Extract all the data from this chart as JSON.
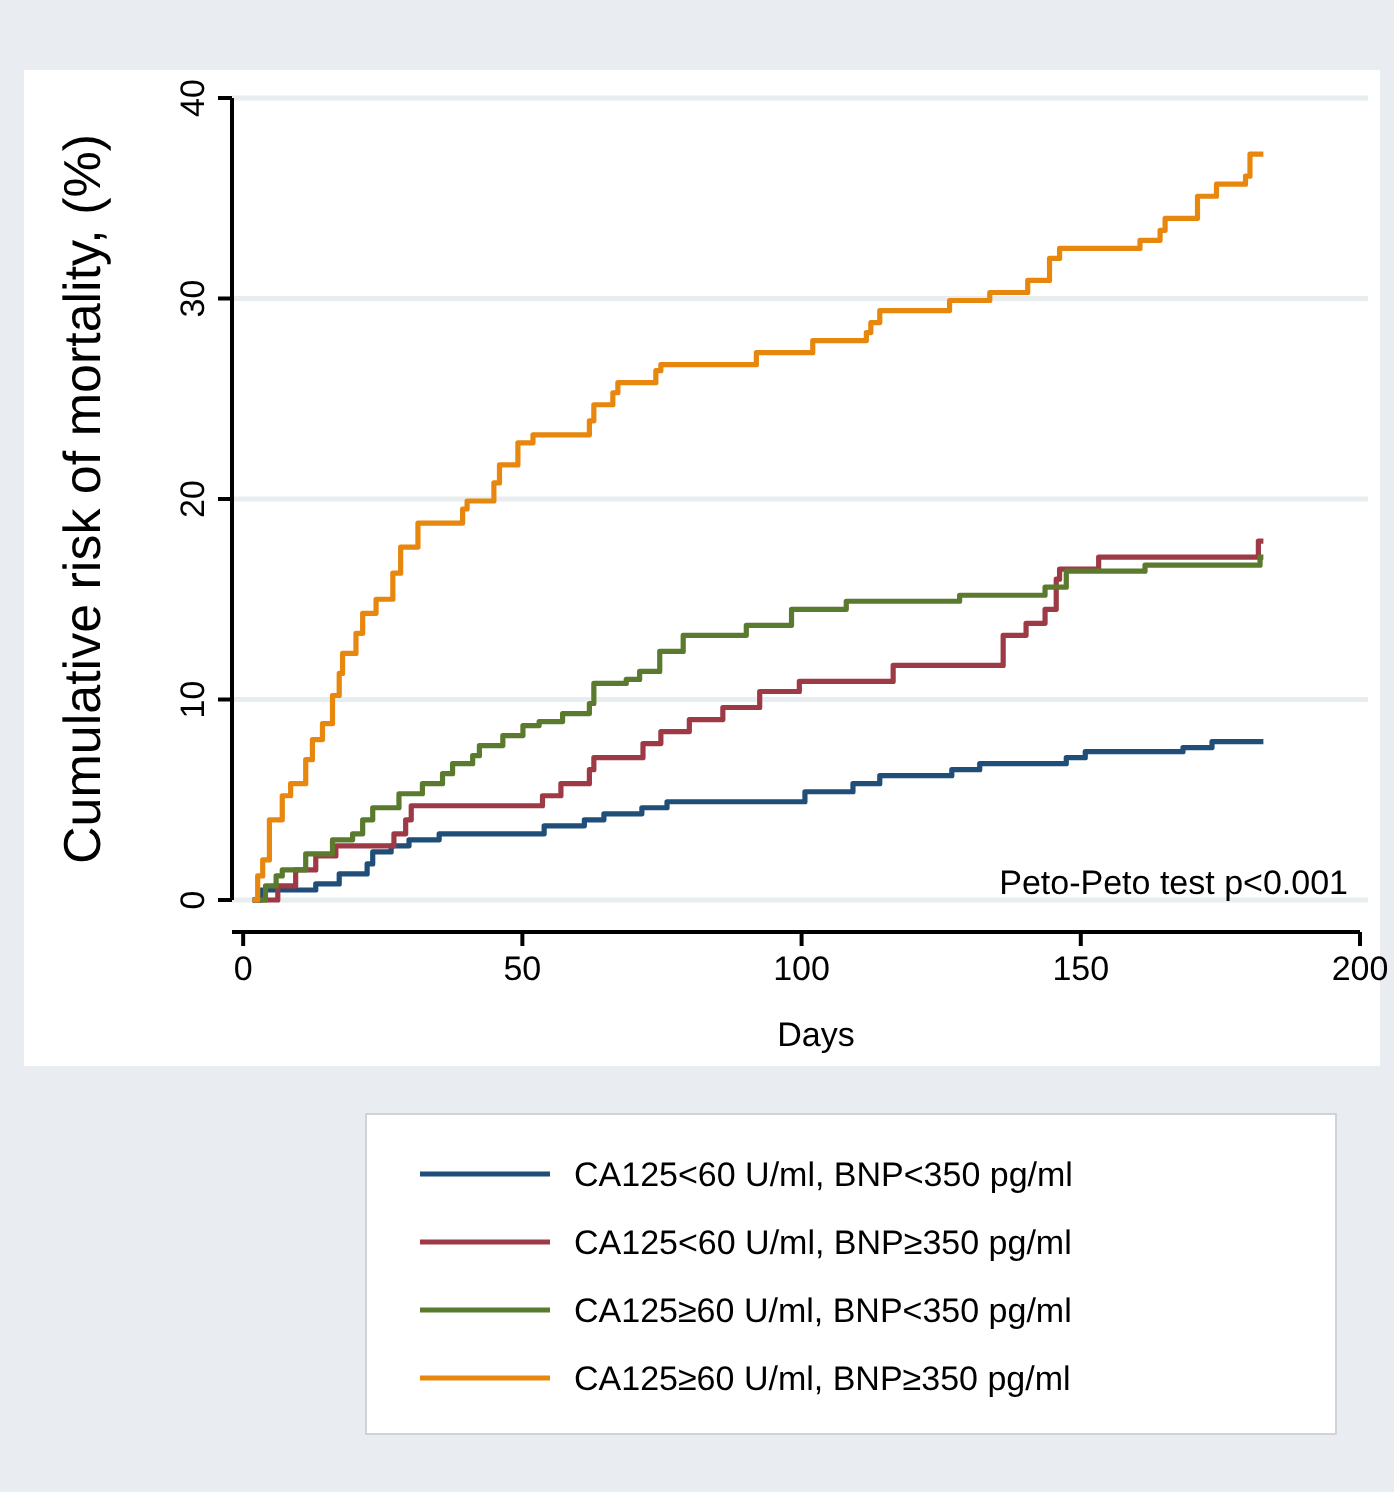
{
  "chart_data": {
    "type": "step",
    "xlabel": "Days",
    "ylabel": "Cumulative risk of  mortality, (%)",
    "xlim": [
      -2,
      200
    ],
    "xticks": [
      0,
      50,
      100,
      150,
      200
    ],
    "ylim": [
      0,
      40
    ],
    "yticks": [
      0,
      10,
      20,
      30,
      40
    ],
    "grid": "y",
    "legend": "bottom",
    "line_style": "solid",
    "marker": "none",
    "annotations": [
      "Peto-Peto test p<0.001"
    ],
    "series": [
      {
        "name": "CA125<60 U/ml, BNP<350 pg/ml",
        "color": "#1f4e79",
        "x": [
          1.7,
          3.1,
          13.0,
          17.2,
          22.2,
          23.2,
          26.5,
          29.7,
          35.1,
          53.9,
          61.1,
          64.6,
          71.4,
          75.9,
          100.6,
          109.2,
          114.0,
          126.9,
          131.9,
          147.4,
          150.8,
          168.3,
          173.5,
          182.7
        ],
        "values": [
          0,
          0.5,
          0.8,
          1.3,
          1.8,
          2.4,
          2.7,
          3.0,
          3.3,
          3.7,
          4.0,
          4.3,
          4.6,
          4.9,
          5.4,
          5.8,
          6.2,
          6.5,
          6.8,
          7.1,
          7.4,
          7.6,
          7.9,
          7.9
        ]
      },
      {
        "name": "CA125<60 U/ml, BNP≥350 pg/ml",
        "color": "#9e3a46",
        "x": [
          1.7,
          6.2,
          9.4,
          13.0,
          16.6,
          27.0,
          29.1,
          30.1,
          53.6,
          56.9,
          62.0,
          62.8,
          71.6,
          74.8,
          79.9,
          85.9,
          92.5,
          99.6,
          116.4,
          136.1,
          140.2,
          143.6,
          145.6,
          146.2,
          153.2,
          181.8,
          182.7
        ],
        "values": [
          0,
          0.7,
          1.5,
          2.2,
          2.7,
          3.3,
          4.0,
          4.7,
          5.2,
          5.8,
          6.5,
          7.1,
          7.8,
          8.4,
          9.0,
          9.6,
          10.4,
          10.9,
          11.7,
          13.2,
          13.8,
          14.5,
          16.0,
          16.5,
          17.1,
          17.9,
          17.9
        ]
      },
      {
        "name": "CA125≥60 U/ml, BNP<350 pg/ml",
        "color": "#5a7a2e",
        "x": [
          1.7,
          4.0,
          5.9,
          7.0,
          11.2,
          16.0,
          19.6,
          21.4,
          23.2,
          27.9,
          32.1,
          35.7,
          37.5,
          41.1,
          42.3,
          46.5,
          50.1,
          53.0,
          57.2,
          62.0,
          62.8,
          68.6,
          71.0,
          74.6,
          78.8,
          90.1,
          98.2,
          108.0,
          128.3,
          143.6,
          147.4,
          161.5,
          182.1,
          182.7
        ],
        "values": [
          0,
          0.7,
          1.2,
          1.5,
          2.3,
          3.0,
          3.3,
          4.0,
          4.6,
          5.3,
          5.8,
          6.3,
          6.8,
          7.2,
          7.7,
          8.2,
          8.7,
          8.9,
          9.3,
          9.8,
          10.8,
          11.0,
          11.4,
          12.4,
          13.2,
          13.7,
          14.5,
          14.9,
          15.2,
          15.6,
          16.4,
          16.7,
          17.1,
          17.1
        ]
      },
      {
        "name": "CA125≥60 U/ml, BNP≥350 pg/ml",
        "color": "#e8870e",
        "x": [
          1.7,
          2.6,
          3.5,
          4.7,
          7.0,
          8.5,
          11.2,
          12.4,
          14.2,
          16.0,
          17.2,
          17.8,
          20.2,
          21.4,
          23.8,
          26.8,
          28.2,
          31.3,
          39.3,
          40.1,
          44.9,
          45.9,
          49.2,
          51.9,
          62.0,
          62.8,
          66.2,
          67.1,
          73.9,
          74.8,
          91.9,
          102.0,
          111.6,
          112.4,
          114.0,
          126.5,
          133.7,
          140.5,
          144.4,
          146.2,
          160.6,
          164.2,
          165.1,
          170.9,
          174.3,
          179.5,
          180.3,
          182.7
        ],
        "values": [
          0,
          1.2,
          2.0,
          4.0,
          5.2,
          5.8,
          7.0,
          8.0,
          8.8,
          10.2,
          11.3,
          12.3,
          13.3,
          14.3,
          15.0,
          16.3,
          17.6,
          18.8,
          19.5,
          19.9,
          20.8,
          21.7,
          22.8,
          23.2,
          23.9,
          24.7,
          25.3,
          25.8,
          26.4,
          26.7,
          27.3,
          27.9,
          28.3,
          28.8,
          29.4,
          29.9,
          30.3,
          30.9,
          32.0,
          32.5,
          32.9,
          33.4,
          34.0,
          35.1,
          35.7,
          36.1,
          37.2,
          37.2
        ]
      }
    ]
  }
}
